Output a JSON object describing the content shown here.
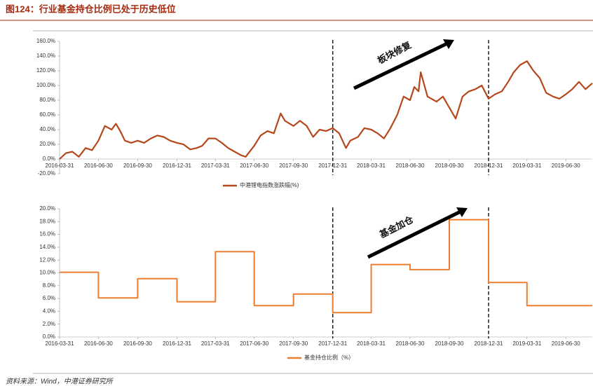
{
  "title": "图124：行业基金持仓比例已处于历史低位",
  "source": "资料来源：Wind，中港证券研究所",
  "chart_data": [
    {
      "type": "line",
      "annotation": "板块修复",
      "vlines": [
        "2017-12-31",
        "2018-12-31"
      ],
      "xlim": [
        "2016-03-31",
        "2019-08-31"
      ],
      "xticks": [
        "2016-03-31",
        "2016-06-30",
        "2016-09-30",
        "2016-12-31",
        "2017-03-31",
        "2017-06-30",
        "2017-09-30",
        "2017-12-31",
        "2018-03-31",
        "2018-06-30",
        "2018-09-30",
        "2018-12-31",
        "2019-03-31",
        "2019-06-30"
      ],
      "ylim": [
        -20,
        160
      ],
      "yticks": [
        {
          "value": -20,
          "label": "-20.0%"
        },
        {
          "value": 0,
          "label": "0.0%"
        },
        {
          "value": 20,
          "label": "20.0%"
        },
        {
          "value": 40,
          "label": "40.0%"
        },
        {
          "value": 60,
          "label": "60.0%"
        },
        {
          "value": 80,
          "label": "80.0%"
        },
        {
          "value": 100,
          "label": "100.0%"
        },
        {
          "value": 120,
          "label": "120.0%"
        },
        {
          "value": 140,
          "label": "140.0%"
        },
        {
          "value": 160,
          "label": "160.0%"
        }
      ],
      "x": [
        "2016-03-31",
        "2016-04-15",
        "2016-04-30",
        "2016-05-15",
        "2016-05-31",
        "2016-06-15",
        "2016-06-30",
        "2016-07-15",
        "2016-07-31",
        "2016-08-10",
        "2016-08-20",
        "2016-08-31",
        "2016-09-15",
        "2016-09-30",
        "2016-10-15",
        "2016-10-31",
        "2016-11-15",
        "2016-11-30",
        "2016-12-15",
        "2016-12-31",
        "2017-01-15",
        "2017-01-31",
        "2017-02-15",
        "2017-02-28",
        "2017-03-15",
        "2017-03-31",
        "2017-04-15",
        "2017-04-30",
        "2017-05-15",
        "2017-05-31",
        "2017-06-10",
        "2017-06-30",
        "2017-07-15",
        "2017-07-31",
        "2017-08-15",
        "2017-08-31",
        "2017-09-10",
        "2017-09-30",
        "2017-10-15",
        "2017-10-31",
        "2017-11-15",
        "2017-11-30",
        "2017-12-15",
        "2017-12-31",
        "2018-01-15",
        "2018-01-31",
        "2018-02-10",
        "2018-02-28",
        "2018-03-15",
        "2018-03-31",
        "2018-04-15",
        "2018-04-30",
        "2018-05-15",
        "2018-05-31",
        "2018-06-15",
        "2018-06-30",
        "2018-07-10",
        "2018-07-20",
        "2018-07-25",
        "2018-08-10",
        "2018-08-31",
        "2018-09-15",
        "2018-09-30",
        "2018-10-15",
        "2018-10-31",
        "2018-11-15",
        "2018-11-30",
        "2018-12-15",
        "2018-12-31",
        "2019-01-15",
        "2019-01-31",
        "2019-02-15",
        "2019-02-28",
        "2019-03-15",
        "2019-03-31",
        "2019-04-15",
        "2019-04-30",
        "2019-05-15",
        "2019-05-31",
        "2019-06-15",
        "2019-06-30",
        "2019-07-15",
        "2019-07-31",
        "2019-08-15",
        "2019-08-31"
      ],
      "series": [
        {
          "name": "中港锂电指数涨跌幅(%)",
          "color": "#b5471b",
          "values": [
            0,
            8,
            10,
            3,
            15,
            12,
            25,
            45,
            40,
            48,
            38,
            25,
            22,
            25,
            22,
            28,
            32,
            30,
            25,
            22,
            20,
            13,
            15,
            18,
            28,
            28,
            22,
            15,
            10,
            5,
            3,
            18,
            32,
            38,
            35,
            62,
            52,
            45,
            52,
            45,
            30,
            40,
            38,
            42,
            35,
            15,
            25,
            30,
            42,
            40,
            35,
            28,
            42,
            60,
            85,
            80,
            98,
            92,
            118,
            85,
            78,
            85,
            70,
            55,
            85,
            92,
            95,
            100,
            82,
            88,
            92,
            105,
            118,
            128,
            133,
            120,
            110,
            90,
            85,
            82,
            88,
            95,
            105,
            95,
            103
          ]
        }
      ]
    },
    {
      "type": "line",
      "step": true,
      "annotation": "基金加仓",
      "vlines": [
        "2017-12-31",
        "2018-12-31"
      ],
      "xlim": [
        "2016-03-31",
        "2019-08-31"
      ],
      "xticks": [
        "2016-03-31",
        "2016-06-30",
        "2016-09-30",
        "2016-12-31",
        "2017-03-31",
        "2017-06-30",
        "2017-09-30",
        "2017-12-31",
        "2018-03-31",
        "2018-06-30",
        "2018-09-30",
        "2018-12-31",
        "2019-03-31",
        "2019-06-30"
      ],
      "ylim": [
        0,
        20
      ],
      "yticks": [
        {
          "value": 0,
          "label": "0.0%"
        },
        {
          "value": 2,
          "label": "2.0%"
        },
        {
          "value": 4,
          "label": "4.0%"
        },
        {
          "value": 6,
          "label": "6.0%"
        },
        {
          "value": 8,
          "label": "8.0%"
        },
        {
          "value": 10,
          "label": "10.0%"
        },
        {
          "value": 12,
          "label": "12.0%"
        },
        {
          "value": 14,
          "label": "14.0%"
        },
        {
          "value": 16,
          "label": "16.0%"
        },
        {
          "value": 18,
          "label": "18.0%"
        },
        {
          "value": 20,
          "label": "20.0%"
        }
      ],
      "x": [
        "2016-03-31",
        "2016-06-30",
        "2016-09-30",
        "2016-12-31",
        "2017-03-31",
        "2017-06-30",
        "2017-09-30",
        "2017-12-31",
        "2018-03-31",
        "2018-06-30",
        "2018-09-30",
        "2018-12-31",
        "2019-03-31",
        "2019-08-31"
      ],
      "series": [
        {
          "name": "基金持仓比例（%）",
          "color": "#ed7d31",
          "values": [
            10.1,
            6.1,
            9.1,
            5.5,
            13.3,
            4.9,
            6.7,
            3.8,
            11.3,
            10.5,
            18.3,
            8.5,
            4.9,
            4.9
          ]
        }
      ]
    }
  ]
}
